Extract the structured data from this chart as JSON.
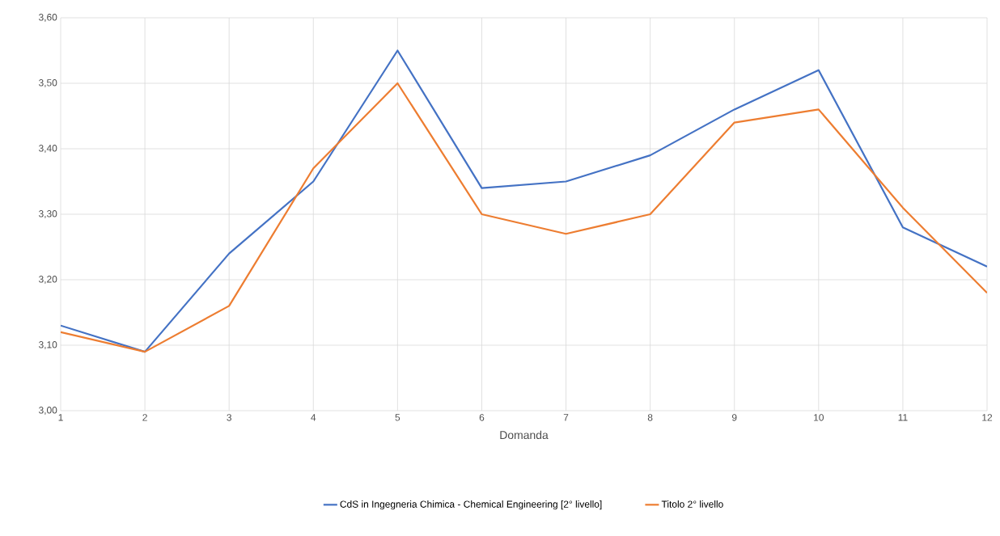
{
  "chart_data": {
    "type": "line",
    "xlabel": "Domanda",
    "x": [
      1,
      2,
      3,
      4,
      5,
      6,
      7,
      8,
      9,
      10,
      11,
      12
    ],
    "series": [
      {
        "name": "CdS in Ingegneria Chimica - Chemical  Engineering [2° livello]",
        "color": "#4472c4",
        "values": [
          3.13,
          3.09,
          3.24,
          3.35,
          3.55,
          3.34,
          3.35,
          3.39,
          3.46,
          3.52,
          3.28,
          3.22
        ]
      },
      {
        "name": "Titolo 2° livello",
        "color": "#ed7d31",
        "values": [
          3.12,
          3.09,
          3.16,
          3.37,
          3.5,
          3.3,
          3.27,
          3.3,
          3.44,
          3.46,
          3.31,
          3.18
        ]
      }
    ],
    "xlim": [
      1,
      12
    ],
    "xticks": [
      1,
      2,
      3,
      4,
      5,
      6,
      7,
      8,
      9,
      10,
      11,
      12
    ],
    "ylim": [
      3.0,
      3.6
    ],
    "yticks": [
      {
        "value": 3.0,
        "label": "3,00"
      },
      {
        "value": 3.1,
        "label": "3,10"
      },
      {
        "value": 3.2,
        "label": "3,20"
      },
      {
        "value": 3.3,
        "label": "3,30"
      },
      {
        "value": 3.4,
        "label": "3,40"
      },
      {
        "value": 3.5,
        "label": "3,50"
      },
      {
        "value": 3.6,
        "label": "3,60"
      }
    ],
    "grid": true,
    "legend": "bottom",
    "marker": "none",
    "line_style": "solid"
  }
}
